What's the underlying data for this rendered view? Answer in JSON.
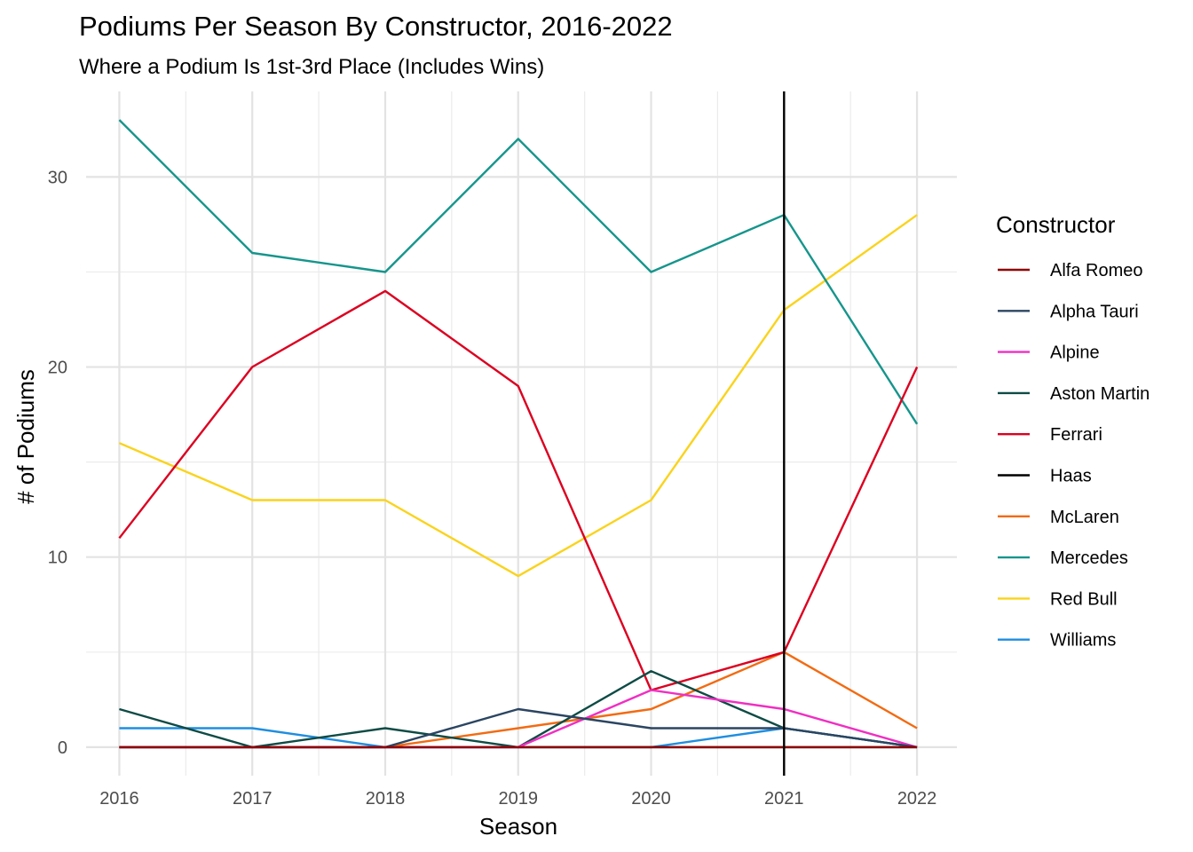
{
  "chart_data": {
    "type": "line",
    "title": "Podiums Per Season By Constructor, 2016-2022",
    "subtitle": "Where a Podium Is 1st-3rd Place (Includes Wins)",
    "xlabel": "Season",
    "ylabel": "# of Podiums",
    "x": [
      2016,
      2017,
      2018,
      2019,
      2020,
      2021,
      2022
    ],
    "xlim": [
      2015.75,
      2022.3
    ],
    "ylim": [
      -1.5,
      34.5
    ],
    "yticks": [
      0,
      10,
      20,
      30
    ],
    "grid": true,
    "reference_line": {
      "x": 2021,
      "color": "#000000"
    },
    "legend": {
      "title": "Constructor",
      "position": "right"
    },
    "series": [
      {
        "name": "Alfa Romeo",
        "color": "#900000",
        "values": [
          0,
          0,
          0,
          0,
          0,
          0,
          0
        ]
      },
      {
        "name": "Alpha Tauri",
        "color": "#2b4562",
        "values": [
          0,
          0,
          0,
          2,
          1,
          1,
          0
        ]
      },
      {
        "name": "Alpine",
        "color": "#f02fc2",
        "values": [
          0,
          0,
          0,
          0,
          3,
          2,
          0
        ]
      },
      {
        "name": "Aston Martin",
        "color": "#0e4b45",
        "values": [
          2,
          0,
          1,
          0,
          4,
          1,
          0
        ]
      },
      {
        "name": "Ferrari",
        "color": "#dc0020",
        "values": [
          11,
          20,
          24,
          19,
          3,
          5,
          20
        ]
      },
      {
        "name": "Haas",
        "color": "#000000",
        "values": [
          0,
          0,
          0,
          0,
          0,
          0,
          0
        ]
      },
      {
        "name": "McLaren",
        "color": "#f26b12",
        "values": [
          0,
          0,
          0,
          1,
          2,
          5,
          1
        ]
      },
      {
        "name": "Mercedes",
        "color": "#16958c",
        "values": [
          33,
          26,
          25,
          32,
          25,
          28,
          17
        ]
      },
      {
        "name": "Red Bull",
        "color": "#fad31c",
        "values": [
          16,
          13,
          13,
          9,
          13,
          23,
          28
        ]
      },
      {
        "name": "Williams",
        "color": "#1f8ee0",
        "values": [
          1,
          1,
          0,
          0,
          0,
          1,
          0
        ]
      }
    ]
  }
}
